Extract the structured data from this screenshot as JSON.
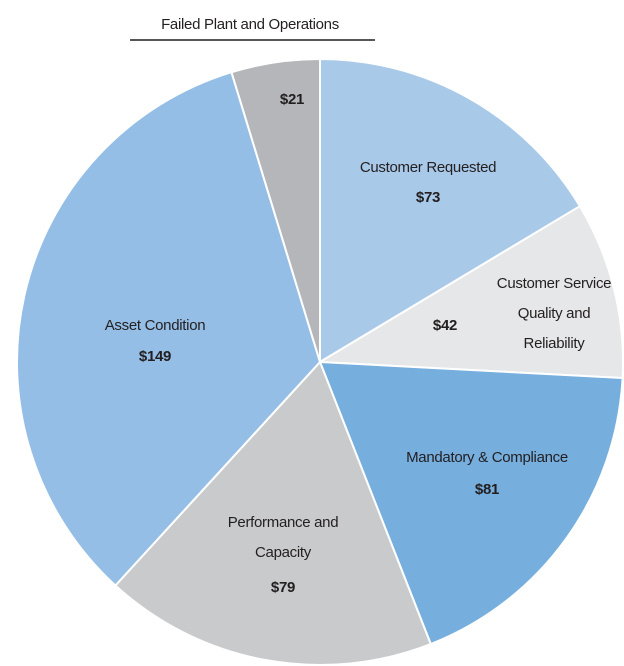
{
  "chart_data": {
    "type": "pie",
    "categories": [
      "Customer Requested",
      "Customer Service Quality and Reliability",
      "Mandatory & Compliance",
      "Performance and Capacity",
      "Asset Condition",
      "Failed Plant and Operations"
    ],
    "values": [
      73,
      42,
      81,
      79,
      149,
      21
    ],
    "value_labels": [
      "$73",
      "$42",
      "$81",
      "$79",
      "$149",
      "$21"
    ],
    "colors": [
      "#a9c9e9",
      "#e6e7e8",
      "#76aede",
      "#c9cacc",
      "#95bee6",
      "#b5b6b9"
    ]
  }
}
